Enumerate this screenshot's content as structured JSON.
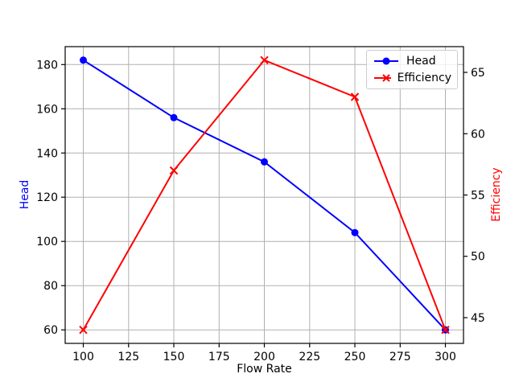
{
  "chart_data": {
    "type": "line",
    "title": "",
    "xlabel": "Flow Rate",
    "ylabel_left": "Head",
    "ylabel_right": "Efficiency",
    "x": [
      100,
      150,
      200,
      250,
      300
    ],
    "series": [
      {
        "name": "Head",
        "axis": "left",
        "color": "#0000ff",
        "marker": "circle",
        "values": [
          182,
          156,
          136,
          104,
          60
        ]
      },
      {
        "name": "Efficiency",
        "axis": "right",
        "color": "#ff0000",
        "marker": "x",
        "values": [
          44,
          57,
          66,
          63,
          44
        ]
      }
    ],
    "xlim": [
      90,
      310
    ],
    "xticks": [
      100,
      125,
      150,
      175,
      200,
      225,
      250,
      275,
      300
    ],
    "ylim_left": [
      53.9,
      188.1
    ],
    "yticks_left": [
      60,
      80,
      100,
      120,
      140,
      160,
      180
    ],
    "ylim_right": [
      42.9,
      67.1
    ],
    "yticks_right": [
      45,
      50,
      55,
      60,
      65
    ],
    "grid": true,
    "legend_position": "upper right",
    "colors": {
      "background": "#ffffff",
      "grid": "#b0b0b0",
      "spine": "#000000",
      "tick_label": "#000000",
      "legend_border": "#cccccc",
      "ylabel_left_color": "#0000ff",
      "ylabel_right_color": "#ff0000"
    }
  }
}
